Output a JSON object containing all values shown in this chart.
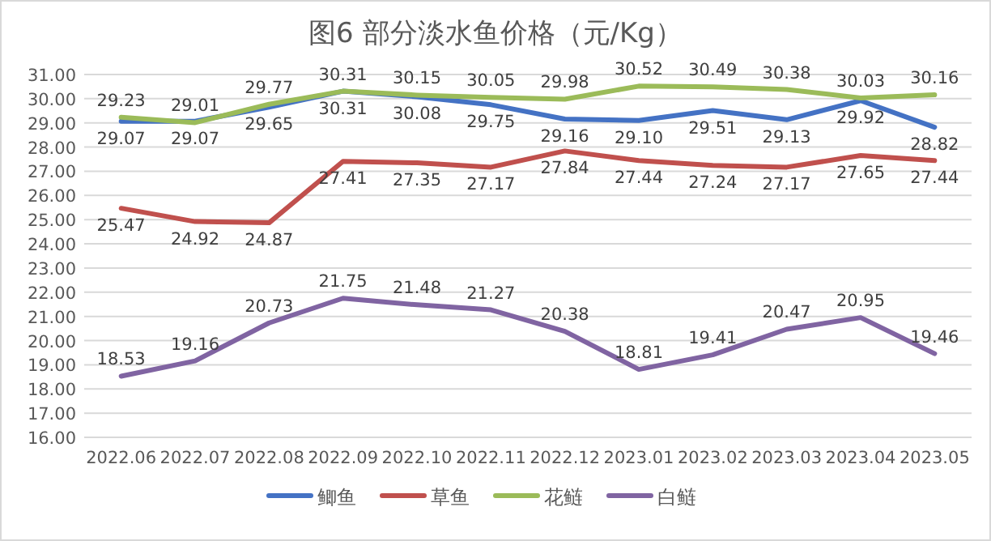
{
  "chart_data": {
    "type": "line",
    "title": "图6  部分淡水鱼价格（元/Kg）",
    "categories": [
      "2022.06",
      "2022.07",
      "2022.08",
      "2022.09",
      "2022.10",
      "2022.11",
      "2022.12",
      "2023.01",
      "2023.02",
      "2023.03",
      "2023.04",
      "2023.05"
    ],
    "series": [
      {
        "name": "鲫鱼",
        "color": "#4472c4",
        "values": [
          29.07,
          29.07,
          29.65,
          30.31,
          30.08,
          29.75,
          29.16,
          29.1,
          29.51,
          29.13,
          29.92,
          28.82
        ],
        "value_labels": [
          "29.07",
          "29.07",
          "29.65",
          "30.31",
          "30.08",
          "29.75",
          "29.16",
          "29.10",
          "29.51",
          "29.13",
          "29.92",
          "28.82"
        ]
      },
      {
        "name": "草鱼",
        "color": "#c0504d",
        "values": [
          25.47,
          24.92,
          24.87,
          27.41,
          27.35,
          27.17,
          27.84,
          27.44,
          27.24,
          27.17,
          27.65,
          27.44
        ],
        "value_labels": [
          "25.47",
          "24.92",
          "24.87",
          "27.41",
          "27.35",
          "27.17",
          "27.84",
          "27.44",
          "27.24",
          "27.17",
          "27.65",
          "27.44"
        ]
      },
      {
        "name": "花鲢",
        "color": "#9bbb59",
        "values": [
          29.23,
          29.01,
          29.77,
          30.31,
          30.15,
          30.05,
          29.98,
          30.52,
          30.49,
          30.38,
          30.03,
          30.16
        ],
        "value_labels": [
          "29.23",
          "29.01",
          "29.77",
          "30.31",
          "30.15",
          "30.05",
          "29.98",
          "30.52",
          "30.49",
          "30.38",
          "30.03",
          "30.16"
        ]
      },
      {
        "name": "白鲢",
        "color": "#8064a2",
        "values": [
          18.53,
          19.16,
          20.73,
          21.75,
          21.48,
          21.27,
          20.38,
          18.81,
          19.41,
          20.47,
          20.95,
          19.46
        ],
        "value_labels": [
          "18.53",
          "19.16",
          "20.73",
          "21.75",
          "21.48",
          "21.27",
          "20.38",
          "18.81",
          "19.41",
          "20.47",
          "20.95",
          "19.46"
        ]
      }
    ],
    "ylim": [
      16,
      31
    ],
    "yticks": [
      {
        "value": 16,
        "label": "16.00"
      },
      {
        "value": 17,
        "label": "17.00"
      },
      {
        "value": 18,
        "label": "18.00"
      },
      {
        "value": 19,
        "label": "19.00"
      },
      {
        "value": 20,
        "label": "20.00"
      },
      {
        "value": 21,
        "label": "21.00"
      },
      {
        "value": 22,
        "label": "22.00"
      },
      {
        "value": 23,
        "label": "23.00"
      },
      {
        "value": 24,
        "label": "24.00"
      },
      {
        "value": 25,
        "label": "25.00"
      },
      {
        "value": 26,
        "label": "26.00"
      },
      {
        "value": 27,
        "label": "27.00"
      },
      {
        "value": 28,
        "label": "28.00"
      },
      {
        "value": 29,
        "label": "29.00"
      },
      {
        "value": 30,
        "label": "30.00"
      },
      {
        "value": 31,
        "label": "31.00"
      }
    ],
    "grid": "y",
    "legend": "bottom",
    "marker": "none",
    "line_style": "solid"
  }
}
